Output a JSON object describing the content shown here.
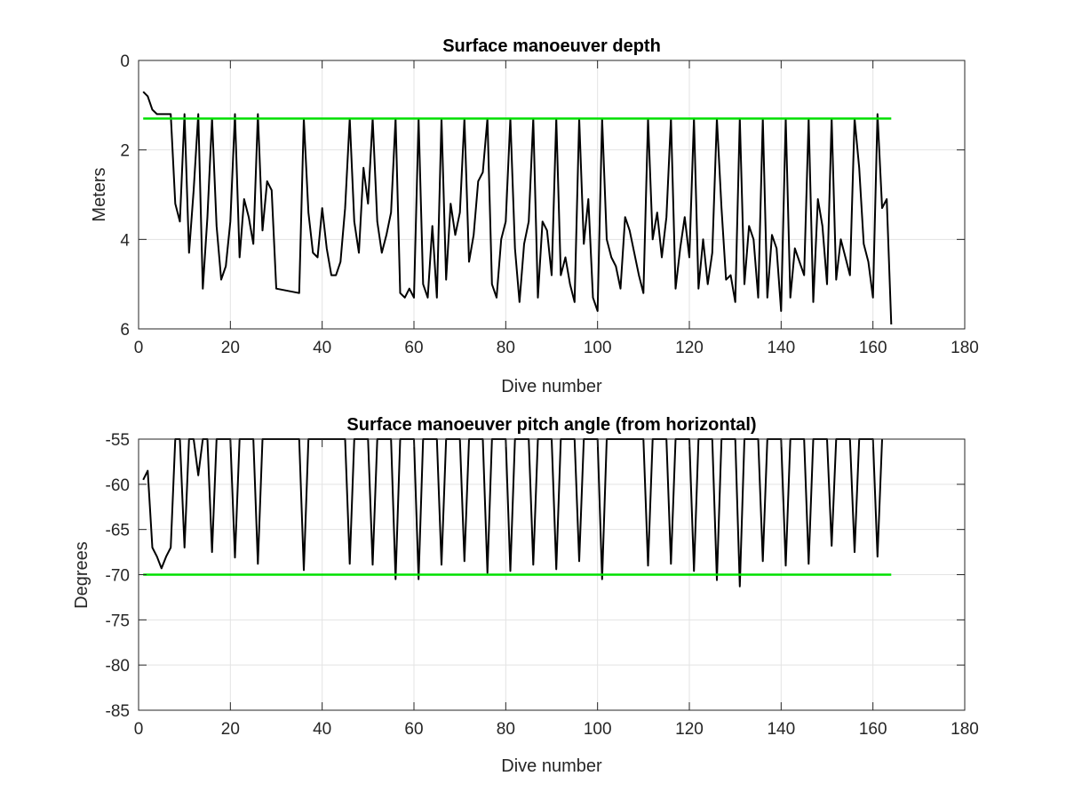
{
  "chart_data": [
    {
      "type": "line",
      "title": "Surface manoeuver depth",
      "xlabel": "Dive number",
      "ylabel": "Meters",
      "xlim": [
        0,
        180
      ],
      "ylim": [
        0,
        6
      ],
      "y_reversed": true,
      "grid": true,
      "xticks": [
        "0",
        "20",
        "40",
        "60",
        "80",
        "100",
        "120",
        "140",
        "160",
        "180"
      ],
      "yticks": [
        "0",
        "2",
        "4",
        "6"
      ],
      "series": [
        {
          "color": "#000000",
          "x": [
            1,
            2,
            3,
            4,
            5,
            6,
            7,
            8,
            9,
            10,
            11,
            12,
            13,
            14,
            15,
            16,
            17,
            18,
            19,
            20,
            21,
            22,
            23,
            24,
            25,
            26,
            27,
            28,
            29,
            30,
            35,
            36,
            37,
            38,
            39,
            40,
            41,
            42,
            43,
            44,
            45,
            46,
            47,
            48,
            49,
            50,
            51,
            52,
            53,
            54,
            55,
            56,
            57,
            58,
            59,
            60,
            61,
            62,
            63,
            64,
            65,
            66,
            67,
            68,
            69,
            70,
            71,
            72,
            73,
            74,
            75,
            76,
            77,
            78,
            79,
            80,
            81,
            82,
            83,
            84,
            85,
            86,
            87,
            88,
            89,
            90,
            91,
            92,
            93,
            94,
            95,
            96,
            97,
            98,
            99,
            100,
            101,
            102,
            103,
            104,
            105,
            106,
            107,
            108,
            109,
            110,
            111,
            112,
            113,
            114,
            115,
            116,
            117,
            118,
            119,
            120,
            121,
            122,
            123,
            124,
            125,
            126,
            127,
            128,
            129,
            130,
            131,
            132,
            133,
            134,
            135,
            136,
            137,
            138,
            139,
            140,
            141,
            142,
            143,
            144,
            145,
            146,
            147,
            148,
            149,
            150,
            151,
            152,
            153,
            154,
            155,
            156,
            157,
            158,
            159,
            160,
            161,
            162,
            163,
            164
          ],
          "y": [
            0.7,
            0.8,
            1.1,
            1.2,
            1.2,
            1.2,
            1.2,
            3.2,
            3.6,
            1.2,
            4.3,
            2.9,
            1.2,
            5.1,
            3.5,
            1.3,
            3.7,
            4.9,
            4.6,
            3.6,
            1.2,
            4.4,
            3.1,
            3.5,
            4.1,
            1.2,
            3.8,
            2.7,
            2.9,
            5.1,
            5.2,
            1.3,
            3.4,
            4.3,
            4.4,
            3.3,
            4.2,
            4.8,
            4.8,
            4.5,
            3.3,
            1.3,
            3.6,
            4.3,
            2.4,
            3.2,
            1.3,
            3.6,
            4.3,
            3.9,
            3.4,
            1.3,
            5.2,
            5.3,
            5.1,
            5.3,
            1.3,
            5.0,
            5.3,
            3.7,
            5.3,
            1.3,
            4.9,
            3.2,
            3.9,
            3.4,
            1.3,
            4.5,
            3.9,
            2.7,
            2.5,
            1.3,
            5.0,
            5.3,
            4.0,
            3.6,
            1.3,
            4.2,
            5.4,
            4.1,
            3.6,
            1.3,
            5.3,
            3.6,
            3.8,
            4.8,
            1.3,
            4.8,
            4.4,
            5.0,
            5.4,
            1.3,
            4.1,
            3.1,
            5.3,
            5.6,
            1.3,
            4.0,
            4.4,
            4.6,
            5.1,
            3.5,
            3.8,
            4.3,
            4.8,
            5.2,
            1.3,
            4.0,
            3.4,
            4.4,
            3.5,
            1.3,
            5.1,
            4.2,
            3.5,
            4.4,
            1.3,
            5.1,
            4.0,
            5.0,
            4.3,
            1.3,
            3.3,
            4.9,
            4.8,
            5.4,
            1.3,
            5.0,
            3.7,
            4.0,
            5.3,
            1.3,
            5.3,
            3.9,
            4.2,
            5.6,
            1.3,
            5.3,
            4.2,
            4.5,
            4.8,
            1.3,
            5.4,
            3.1,
            3.7,
            5.0,
            1.3,
            4.9,
            4.0,
            4.4,
            4.8,
            1.3,
            2.4,
            4.1,
            4.5,
            5.3,
            1.2,
            3.3,
            3.1,
            5.9
          ]
        },
        {
          "color": "#00e000",
          "x": [
            1,
            164
          ],
          "y": [
            1.3,
            1.3
          ]
        }
      ]
    },
    {
      "type": "line",
      "title": "Surface manoeuver pitch angle (from horizontal)",
      "xlabel": "Dive number",
      "ylabel": "Degrees",
      "xlim": [
        0,
        180
      ],
      "ylim": [
        -85,
        -55
      ],
      "grid": true,
      "xticks": [
        "0",
        "20",
        "40",
        "60",
        "80",
        "100",
        "120",
        "140",
        "160",
        "180"
      ],
      "yticks": [
        "-55",
        "-60",
        "-65",
        "-70",
        "-75",
        "-80",
        "-85"
      ],
      "series": [
        {
          "color": "#000000",
          "x": [
            1,
            2,
            3,
            4,
            5,
            6,
            7,
            8,
            9,
            10,
            11,
            12,
            13,
            14,
            15,
            16,
            17,
            20,
            21,
            22,
            25,
            26,
            27,
            35,
            36,
            37,
            45,
            46,
            47,
            50,
            51,
            52,
            55,
            56,
            57,
            60,
            61,
            62,
            65,
            66,
            67,
            70,
            71,
            72,
            75,
            76,
            77,
            80,
            81,
            82,
            85,
            86,
            87,
            90,
            91,
            92,
            95,
            96,
            97,
            100,
            101,
            102,
            110,
            111,
            112,
            115,
            116,
            117,
            120,
            121,
            122,
            125,
            126,
            127,
            130,
            131,
            132,
            135,
            136,
            137,
            140,
            141,
            142,
            145,
            146,
            147,
            150,
            151,
            152,
            155,
            156,
            157,
            160,
            161,
            162
          ],
          "y": [
            -59.5,
            -58.5,
            -67,
            -68,
            -69.3,
            -68,
            -67,
            -55,
            -55,
            -67,
            -55,
            -55,
            -59,
            -55,
            -55,
            -67.5,
            -55,
            -55,
            -68.1,
            -55,
            -55,
            -68.8,
            -55,
            -55,
            -69.5,
            -55,
            -55,
            -68.8,
            -55,
            -55,
            -68.9,
            -55,
            -55,
            -70.5,
            -55,
            -55,
            -70.5,
            -55,
            -55,
            -68.9,
            -55,
            -55,
            -68.5,
            -55,
            -55,
            -69.8,
            -55,
            -55,
            -69.6,
            -55,
            -55,
            -68.9,
            -55,
            -55,
            -69.4,
            -55,
            -55,
            -68.5,
            -55,
            -55,
            -70.5,
            -55,
            -55,
            -69,
            -55,
            -55,
            -68.8,
            -55,
            -55,
            -69.6,
            -55,
            -55,
            -70.6,
            -55,
            -55,
            -71.3,
            -55,
            -55,
            -68.5,
            -55,
            -55,
            -69,
            -55,
            -55,
            -68.8,
            -55,
            -55,
            -66.8,
            -55,
            -55,
            -67.5,
            -55,
            -55,
            -68,
            -55
          ]
        },
        {
          "color": "#00e000",
          "x": [
            1,
            164
          ],
          "y": [
            -70,
            -70
          ]
        }
      ]
    }
  ]
}
